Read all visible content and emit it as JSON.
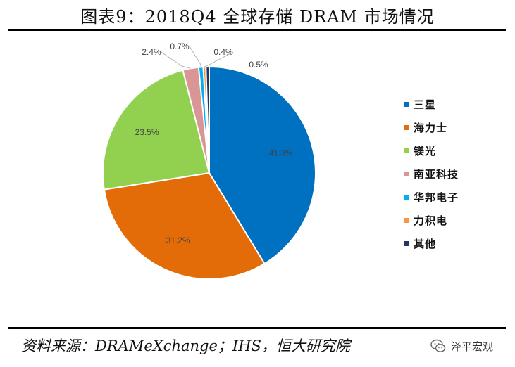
{
  "header": {
    "title": "图表9：2018Q4 全球存储 DRAM 市场情况"
  },
  "chart_data": {
    "type": "pie",
    "title": "图表9：2018Q4 全球存储 DRAM 市场情况",
    "slices": [
      {
        "name": "三星",
        "value": 41.3,
        "label": "41.3%",
        "color": "#0070c0"
      },
      {
        "name": "海力士",
        "value": 31.2,
        "label": "31.2%",
        "color": "#e36c09"
      },
      {
        "name": "镁光",
        "value": 23.5,
        "label": "23.5%",
        "color": "#92d050"
      },
      {
        "name": "南亚科技",
        "value": 2.4,
        "label": "2.4%",
        "color": "#d99694"
      },
      {
        "name": "华邦电子",
        "value": 0.7,
        "label": "0.7%",
        "color": "#00b0f0"
      },
      {
        "name": "力积电",
        "value": 0.4,
        "label": "0.4%",
        "color": "#f79646"
      },
      {
        "name": "其他",
        "value": 0.5,
        "label": "0.5%",
        "color": "#1f3864"
      }
    ],
    "legend_position": "right"
  },
  "footer": {
    "source": "资料来源：DRAMeXchange；IHS，恒大研究院",
    "watermark": "泽平宏观"
  }
}
